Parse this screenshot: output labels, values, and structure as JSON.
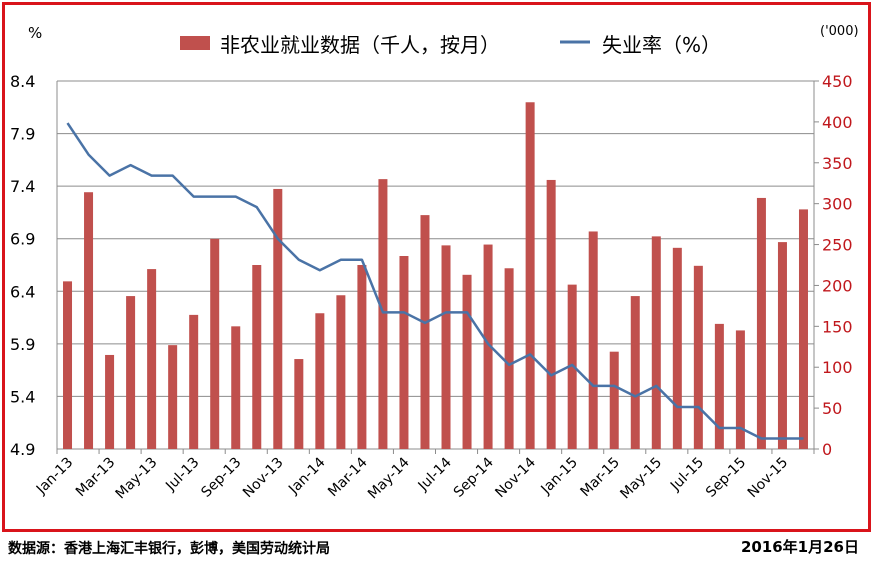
{
  "chart_data": {
    "type": "bar+line",
    "left_axis": {
      "unit_label": "%",
      "ylim": [
        4.9,
        8.4
      ],
      "ticks": [
        "4.9",
        "5.4",
        "5.9",
        "6.4",
        "6.9",
        "7.4",
        "7.9",
        "8.4"
      ]
    },
    "right_axis": {
      "unit_label": "('000)",
      "ylim": [
        0,
        450
      ],
      "ticks": [
        "0",
        "50",
        "100",
        "150",
        "200",
        "250",
        "300",
        "350",
        "400",
        "450"
      ]
    },
    "x_tick_labels": [
      "Jan-13",
      "Mar-13",
      "May-13",
      "Jul-13",
      "Sep-13",
      "Nov-13",
      "Jan-14",
      "Mar-14",
      "May-14",
      "Jul-14",
      "Sep-14",
      "Nov-14",
      "Jan-15",
      "Mar-15",
      "May-15",
      "Jul-15",
      "Sep-15",
      "Nov-15"
    ],
    "categories": [
      "Jan-13",
      "Feb-13",
      "Mar-13",
      "Apr-13",
      "May-13",
      "Jun-13",
      "Jul-13",
      "Aug-13",
      "Sep-13",
      "Oct-13",
      "Nov-13",
      "Dec-13",
      "Jan-14",
      "Feb-14",
      "Mar-14",
      "Apr-14",
      "May-14",
      "Jun-14",
      "Jul-14",
      "Aug-14",
      "Sep-14",
      "Oct-14",
      "Nov-14",
      "Dec-14",
      "Jan-15",
      "Feb-15",
      "Mar-15",
      "Apr-15",
      "May-15",
      "Jun-15",
      "Jul-15",
      "Aug-15",
      "Sep-15",
      "Oct-15",
      "Nov-15",
      "Dec-15"
    ],
    "series": [
      {
        "name": "非农业就业数据（千人，按月）",
        "type": "bar",
        "axis": "right",
        "color": "#c0504d",
        "values": [
          205,
          314,
          115,
          187,
          220,
          127,
          164,
          257,
          150,
          225,
          318,
          110,
          166,
          188,
          225,
          330,
          236,
          286,
          249,
          213,
          250,
          221,
          424,
          329,
          201,
          266,
          119,
          187,
          260,
          246,
          224,
          153,
          145,
          307,
          253,
          293
        ]
      },
      {
        "name": "失业率（%）",
        "type": "line",
        "axis": "left",
        "color": "#4a73a6",
        "values": [
          8.0,
          7.7,
          7.5,
          7.6,
          7.5,
          7.5,
          7.3,
          7.3,
          7.3,
          7.2,
          6.9,
          6.7,
          6.6,
          6.7,
          6.7,
          6.2,
          6.2,
          6.1,
          6.2,
          6.2,
          5.9,
          5.7,
          5.8,
          5.6,
          5.7,
          5.5,
          5.5,
          5.4,
          5.5,
          5.3,
          5.3,
          5.1,
          5.1,
          5.0,
          5.0,
          5.0
        ]
      }
    ],
    "grid": true,
    "legend": "top-center"
  },
  "footer": {
    "source": "数据源：香港上海汇丰银行，彭博，美国劳动统计局",
    "date": "2016年1月26日"
  }
}
